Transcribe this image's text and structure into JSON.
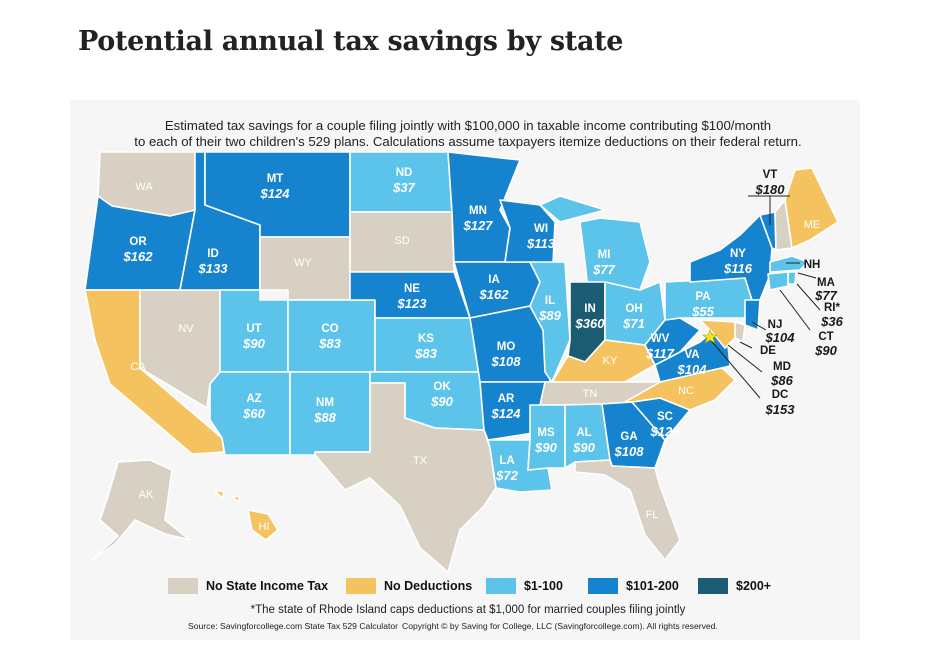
{
  "title": "Potential annual tax savings by state",
  "subtitle_line1": "Estimated tax savings for a couple filing jointly with $100,000 in taxable income contributing $100/month",
  "subtitle_line2": "to each of their two children's 529 plans. Calculations assume taxpayers itemize deductions on their federal return.",
  "colors": {
    "none": "#d8d1c3",
    "nodeduction": "#f4c35f",
    "low": "#5cc3ea",
    "mid": "#1683cf",
    "high": "#1c5c73"
  },
  "legend": [
    {
      "label": "No State Income Tax",
      "color": "#d8d1c3"
    },
    {
      "label": "No Deductions",
      "color": "#f4c35f"
    },
    {
      "label": "$1-100",
      "color": "#5cc3ea"
    },
    {
      "label": "$101-200",
      "color": "#1683cf"
    },
    {
      "label": "$200+",
      "color": "#1c5c73"
    }
  ],
  "states": {
    "WA": {
      "abbr": "WA",
      "value": ""
    },
    "OR": {
      "abbr": "OR",
      "value": "$162"
    },
    "CA": {
      "abbr": "CA",
      "value": ""
    },
    "NV": {
      "abbr": "NV",
      "value": ""
    },
    "ID": {
      "abbr": "ID",
      "value": "$133"
    },
    "MT": {
      "abbr": "MT",
      "value": "$124"
    },
    "WY": {
      "abbr": "WY",
      "value": ""
    },
    "UT": {
      "abbr": "UT",
      "value": "$90"
    },
    "AZ": {
      "abbr": "AZ",
      "value": "$60"
    },
    "CO": {
      "abbr": "CO",
      "value": "$83"
    },
    "NM": {
      "abbr": "NM",
      "value": "$88"
    },
    "ND": {
      "abbr": "ND",
      "value": "$37"
    },
    "SD": {
      "abbr": "SD",
      "value": ""
    },
    "NE": {
      "abbr": "NE",
      "value": "$123"
    },
    "KS": {
      "abbr": "KS",
      "value": "$83"
    },
    "OK": {
      "abbr": "OK",
      "value": "$90"
    },
    "TX": {
      "abbr": "TX",
      "value": ""
    },
    "MN": {
      "abbr": "MN",
      "value": "$127"
    },
    "IA": {
      "abbr": "IA",
      "value": "$162"
    },
    "MO": {
      "abbr": "MO",
      "value": "$108"
    },
    "AR": {
      "abbr": "AR",
      "value": "$124"
    },
    "LA": {
      "abbr": "LA",
      "value": "$72"
    },
    "WI": {
      "abbr": "WI",
      "value": "$113"
    },
    "IL": {
      "abbr": "IL",
      "value": "$89"
    },
    "MI": {
      "abbr": "MI",
      "value": "$77"
    },
    "IN": {
      "abbr": "IN",
      "value": "$360"
    },
    "OH": {
      "abbr": "OH",
      "value": "$71"
    },
    "KY": {
      "abbr": "KY",
      "value": ""
    },
    "TN": {
      "abbr": "TN",
      "value": ""
    },
    "MS": {
      "abbr": "MS",
      "value": "$90"
    },
    "AL": {
      "abbr": "AL",
      "value": "$90"
    },
    "GA": {
      "abbr": "GA",
      "value": "$108"
    },
    "FL": {
      "abbr": "FL",
      "value": ""
    },
    "SC": {
      "abbr": "SC",
      "value": "$126"
    },
    "NC": {
      "abbr": "NC",
      "value": ""
    },
    "VA": {
      "abbr": "VA",
      "value": "$104"
    },
    "WV": {
      "abbr": "WV",
      "value": "$117"
    },
    "PA": {
      "abbr": "PA",
      "value": "$55"
    },
    "NY": {
      "abbr": "NY",
      "value": "$116"
    },
    "VT": {
      "abbr": "VT",
      "value": "$180"
    },
    "NH": {
      "abbr": "NH",
      "value": ""
    },
    "ME": {
      "abbr": "ME",
      "value": ""
    },
    "MA": {
      "abbr": "MA",
      "value": "$77"
    },
    "RI": {
      "abbr": "RI*",
      "value": "$36"
    },
    "CT": {
      "abbr": "CT",
      "value": "$90"
    },
    "NJ": {
      "abbr": "NJ",
      "value": "$104"
    },
    "DE": {
      "abbr": "DE",
      "value": ""
    },
    "MD": {
      "abbr": "MD",
      "value": "$86"
    },
    "DC": {
      "abbr": "DC",
      "value": "$153"
    },
    "AK": {
      "abbr": "AK",
      "value": ""
    },
    "HI": {
      "abbr": "HI",
      "value": ""
    }
  },
  "footnote": "*The state of Rhode Island caps deductions at $1,000 for married couples filing jointly",
  "source": "Source: Savingforcollege.com State Tax 529 Calculator",
  "copyright": "Copyright © by Saving for College, LLC (Savingforcollege.com). All rights reserved."
}
